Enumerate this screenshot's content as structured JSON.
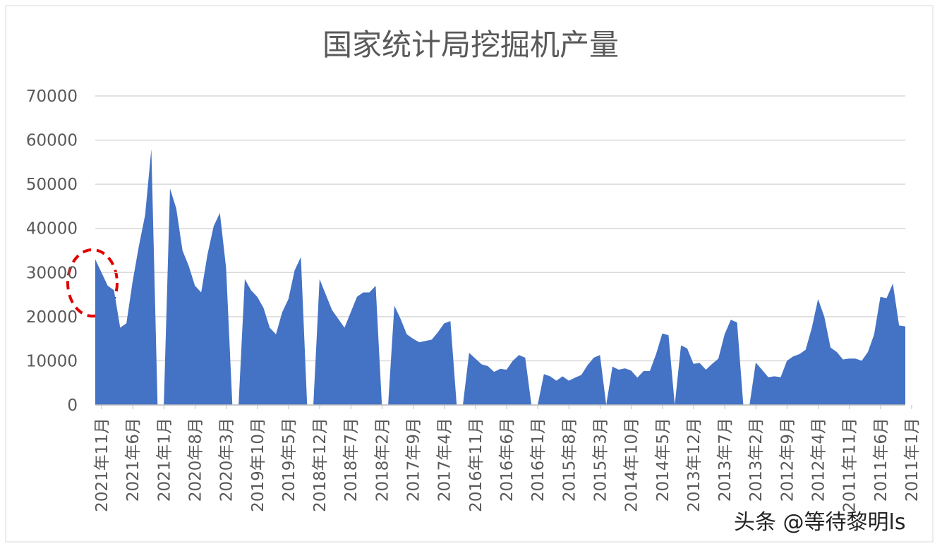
{
  "chart_data": {
    "type": "area",
    "title": "国家统计局挖掘机产量",
    "annotation": "头条 @等待黎明ls",
    "categories": [
      "2021年11月",
      null,
      null,
      null,
      null,
      "2021年6月",
      null,
      null,
      null,
      null,
      "2021年1月",
      null,
      null,
      null,
      null,
      "2020年8月",
      null,
      null,
      null,
      null,
      "2020年3月",
      null,
      null,
      null,
      null,
      "2019年10月",
      null,
      null,
      null,
      null,
      "2019年5月",
      null,
      null,
      null,
      null,
      "2018年12月",
      null,
      null,
      null,
      null,
      "2018年7月",
      null,
      null,
      null,
      null,
      "2018年2月",
      null,
      null,
      null,
      null,
      "2017年9月",
      null,
      null,
      null,
      null,
      "2017年4月",
      null,
      null,
      null,
      null,
      "2016年11月",
      null,
      null,
      null,
      null,
      "2016年6月",
      null,
      null,
      null,
      null,
      "2016年1月",
      null,
      null,
      null,
      null,
      "2015年8月",
      null,
      null,
      null,
      null,
      "2015年3月",
      null,
      null,
      null,
      null,
      "2014年10月",
      null,
      null,
      null,
      null,
      "2014年5月",
      null,
      null,
      null,
      null,
      "2013年12月",
      null,
      null,
      null,
      null,
      "2013年7月",
      null,
      null,
      null,
      null,
      "2013年2月",
      null,
      null,
      null,
      null,
      "2012年9月",
      null,
      null,
      null,
      null,
      "2012年4月",
      null,
      null,
      null,
      null,
      "2011年11月",
      null,
      null,
      null,
      null,
      "2011年6月",
      null,
      null,
      null,
      null,
      "2011年1月"
    ],
    "values": [
      33000,
      30000,
      27000,
      26000,
      17500,
      18500,
      28000,
      36000,
      43000,
      58000,
      0,
      0,
      49000,
      44500,
      35000,
      31500,
      27000,
      25500,
      34000,
      40500,
      43500,
      31000,
      0,
      0,
      28500,
      26000,
      24500,
      22000,
      17500,
      16000,
      21000,
      24000,
      30500,
      33500,
      0,
      0,
      28500,
      25000,
      21500,
      19500,
      17500,
      21000,
      24500,
      25500,
      25500,
      27000,
      0,
      0,
      22500,
      19500,
      16000,
      15000,
      14200,
      14500,
      14800,
      16500,
      18500,
      19000,
      0,
      0,
      11800,
      10500,
      9200,
      8800,
      7500,
      8200,
      8000,
      10000,
      11300,
      10700,
      0,
      0,
      7000,
      6500,
      5500,
      6500,
      5500,
      6200,
      6800,
      9000,
      10700,
      11300,
      0,
      8700,
      8000,
      8300,
      7800,
      6200,
      7700,
      7700,
      11500,
      16200,
      15800,
      0,
      13500,
      12800,
      9300,
      9500,
      8000,
      9300,
      10500,
      16000,
      19300,
      18700,
      0,
      0,
      9600,
      8000,
      6300,
      6500,
      6300,
      10000,
      11000,
      11500,
      12500,
      17500,
      24000,
      20000,
      13000,
      12000,
      10300,
      10500,
      10500,
      10000,
      12000,
      16000,
      24500,
      24200,
      27500,
      18000,
      17800
    ],
    "color": "#4472c4",
    "ylim": [
      0,
      70000
    ],
    "yticks": [
      0,
      10000,
      20000,
      30000,
      40000,
      50000,
      60000,
      70000
    ],
    "grid": true
  }
}
